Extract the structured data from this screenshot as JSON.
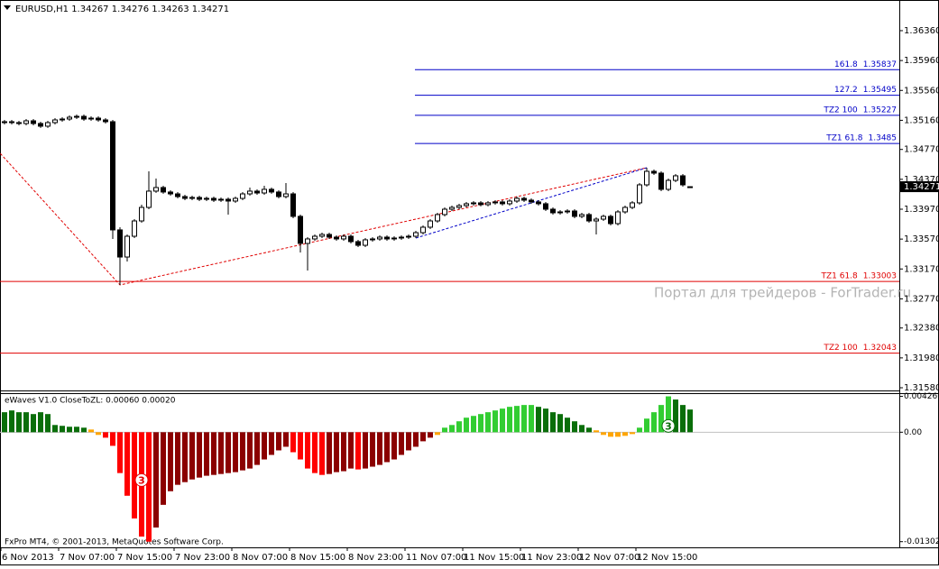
{
  "chart_data": [
    {
      "type": "candlestick",
      "title": "EURUSD,H1  1.34267 1.34276 1.34263 1.34271",
      "categories": [
        "6 Nov 2013",
        null,
        null,
        null,
        null,
        null,
        null,
        null,
        "7 Nov 07:00",
        null,
        null,
        null,
        null,
        null,
        null,
        null,
        "7 Nov 15:00",
        null,
        null,
        null,
        null,
        null,
        null,
        null,
        "7 Nov 23:00",
        null,
        null,
        null,
        null,
        null,
        null,
        null,
        "8 Nov 07:00",
        null,
        null,
        null,
        null,
        null,
        null,
        null,
        "8 Nov 15:00",
        null,
        null,
        null,
        null,
        null,
        null,
        null,
        "8 Nov 23:00",
        null,
        null,
        null,
        null,
        null,
        null,
        null,
        "11 Nov 07:00",
        null,
        null,
        null,
        null,
        null,
        null,
        null,
        "11 Nov 15:00",
        null,
        null,
        null,
        null,
        null,
        null,
        null,
        "11 Nov 23:00",
        null,
        null,
        null,
        null,
        null,
        null,
        null,
        "12 Nov 07:00",
        null,
        null,
        null,
        null,
        null,
        null,
        null,
        "12 Nov 15:00",
        null,
        null,
        null,
        null,
        null,
        null,
        null
      ],
      "open": [
        1.35129,
        1.35141,
        1.35129,
        1.35117,
        1.35153,
        1.35117,
        1.35081,
        1.35129,
        1.35165,
        1.35177,
        1.35201,
        1.35213,
        1.35177,
        1.35189,
        1.35165,
        1.35141,
        1.33693,
        1.3333,
        1.33608,
        1.33813,
        1.33994,
        1.34212,
        1.3426,
        1.342,
        1.34175,
        1.34139,
        1.34115,
        1.34127,
        1.34103,
        1.34115,
        1.34091,
        1.34103,
        1.34079,
        1.34115,
        1.34175,
        1.34212,
        1.34187,
        1.34236,
        1.342,
        1.34139,
        1.34175,
        1.33874,
        1.33512,
        1.33572,
        1.33608,
        1.33632,
        1.33596,
        1.33572,
        1.33608,
        1.33536,
        1.33487,
        1.3356,
        1.33572,
        1.33596,
        1.33572,
        1.33584,
        1.33596,
        1.33608,
        1.33656,
        1.33729,
        1.33813,
        1.33898,
        1.3397,
        1.33994,
        1.34018,
        1.34043,
        1.34055,
        1.34031,
        1.34055,
        1.34067,
        1.34043,
        1.34079,
        1.34115,
        1.34091,
        1.34067,
        1.34043,
        1.3397,
        1.33922,
        1.33934,
        1.33946,
        1.33874,
        1.33898,
        1.33813,
        1.33837,
        1.33874,
        1.33777,
        1.33934,
        1.33994,
        1.34055,
        1.34296,
        1.34477,
        1.34453,
        1.34236,
        1.34356,
        1.34417,
        1.34267
      ],
      "high": [
        1.35165,
        1.35165,
        1.35153,
        1.35177,
        1.35177,
        1.35141,
        1.35153,
        1.35189,
        1.35201,
        1.35225,
        1.35237,
        1.35237,
        1.35213,
        1.35213,
        1.35189,
        1.35165,
        1.33729,
        1.33632,
        1.33837,
        1.34031,
        1.34477,
        1.3438,
        1.34284,
        1.34224,
        1.34199,
        1.34163,
        1.34151,
        1.34151,
        1.34139,
        1.34139,
        1.34127,
        1.34127,
        1.34139,
        1.34199,
        1.3426,
        1.34236,
        1.34284,
        1.3426,
        1.34224,
        1.3432,
        1.34199,
        1.33898,
        1.33596,
        1.33632,
        1.33656,
        1.33656,
        1.3362,
        1.33632,
        1.33632,
        1.3356,
        1.33584,
        1.33596,
        1.3362,
        1.3362,
        1.33608,
        1.3362,
        1.33632,
        1.3368,
        1.33753,
        1.33837,
        1.33922,
        1.33994,
        1.34018,
        1.34043,
        1.34067,
        1.34079,
        1.34079,
        1.34079,
        1.34091,
        1.34091,
        1.34103,
        1.34139,
        1.34139,
        1.34115,
        1.34091,
        1.34067,
        1.33994,
        1.33958,
        1.3397,
        1.3397,
        1.33922,
        1.33922,
        1.33861,
        1.33898,
        1.33898,
        1.33958,
        1.34018,
        1.34079,
        1.3432,
        1.34525,
        1.34501,
        1.34477,
        1.3438,
        1.34441,
        1.34441,
        1.34276
      ],
      "low": [
        1.35105,
        1.35105,
        1.35093,
        1.35093,
        1.35093,
        1.35057,
        1.35057,
        1.35105,
        1.35141,
        1.35153,
        1.35177,
        1.35153,
        1.35153,
        1.35141,
        1.35117,
        1.33572,
        1.32956,
        1.3327,
        1.33584,
        1.33789,
        1.3397,
        1.34188,
        1.34176,
        1.34151,
        1.34115,
        1.34091,
        1.34091,
        1.34079,
        1.34079,
        1.34067,
        1.34067,
        1.33898,
        1.34055,
        1.34091,
        1.34151,
        1.34163,
        1.34163,
        1.34176,
        1.34115,
        1.34115,
        1.3385,
        1.33391,
        1.33149,
        1.33548,
        1.33584,
        1.33572,
        1.33548,
        1.33548,
        1.33512,
        1.33463,
        1.33463,
        1.33536,
        1.33548,
        1.33548,
        1.33548,
        1.3356,
        1.33572,
        1.33584,
        1.33632,
        1.33705,
        1.33789,
        1.33874,
        1.33946,
        1.3397,
        1.33994,
        1.34018,
        1.34007,
        1.34007,
        1.34031,
        1.34018,
        1.34018,
        1.34055,
        1.34067,
        1.34043,
        1.34018,
        1.33946,
        1.33898,
        1.33898,
        1.3391,
        1.3385,
        1.3385,
        1.33789,
        1.33632,
        1.33813,
        1.33753,
        1.33753,
        1.3391,
        1.3397,
        1.34031,
        1.34272,
        1.34429,
        1.34212,
        1.34212,
        1.34332,
        1.34272,
        1.34263
      ],
      "close": [
        1.35141,
        1.35129,
        1.35117,
        1.35153,
        1.35117,
        1.35081,
        1.35129,
        1.35165,
        1.35177,
        1.35201,
        1.35213,
        1.35177,
        1.35189,
        1.35165,
        1.35141,
        1.33693,
        1.3333,
        1.33608,
        1.33813,
        1.33994,
        1.34212,
        1.3426,
        1.342,
        1.34175,
        1.34139,
        1.34115,
        1.34127,
        1.34103,
        1.34115,
        1.34091,
        1.34103,
        1.34079,
        1.34115,
        1.34175,
        1.34212,
        1.34187,
        1.34236,
        1.342,
        1.34139,
        1.34175,
        1.33874,
        1.33512,
        1.33572,
        1.33608,
        1.33632,
        1.33596,
        1.33572,
        1.33608,
        1.33536,
        1.33487,
        1.3356,
        1.33572,
        1.33596,
        1.33572,
        1.33584,
        1.33596,
        1.33608,
        1.33656,
        1.33729,
        1.33813,
        1.33898,
        1.3397,
        1.33994,
        1.34018,
        1.34043,
        1.34055,
        1.34031,
        1.34055,
        1.34067,
        1.34043,
        1.34079,
        1.34115,
        1.34091,
        1.34067,
        1.34043,
        1.3397,
        1.33922,
        1.33934,
        1.33946,
        1.33874,
        1.33898,
        1.33813,
        1.33837,
        1.33874,
        1.33777,
        1.33934,
        1.33994,
        1.34055,
        1.34296,
        1.34477,
        1.34453,
        1.34236,
        1.34356,
        1.34417,
        1.34296,
        1.34271
      ],
      "ylim": [
        1.31556,
        1.36746
      ],
      "yticks": [
        {
          "value": 1.3636,
          "label": "1.36360"
        },
        {
          "value": 1.3596,
          "label": "1.35960"
        },
        {
          "value": 1.3556,
          "label": "1.35560"
        },
        {
          "value": 1.3516,
          "label": "1.35160"
        },
        {
          "value": 1.3477,
          "label": "1.34770"
        },
        {
          "value": 1.3437,
          "label": "1.34370"
        },
        {
          "value": 1.3397,
          "label": "1.33970"
        },
        {
          "value": 1.3357,
          "label": "1.33570"
        },
        {
          "value": 1.3317,
          "label": "1.33170"
        },
        {
          "value": 1.3277,
          "label": "1.32770"
        },
        {
          "value": 1.3238,
          "label": "1.32380"
        },
        {
          "value": 1.3198,
          "label": "1.31980"
        },
        {
          "value": 1.3158,
          "label": "1.31580"
        }
      ],
      "current_price": 1.34271,
      "levels": [
        {
          "label": "161.8",
          "value": 1.35837,
          "color": "#0000c8",
          "from": 57
        },
        {
          "label": "127.2",
          "value": 1.35495,
          "color": "#0000c8",
          "from": 57
        },
        {
          "label": "TZ2 100",
          "value": 1.35227,
          "color": "#0000c8",
          "from": 57
        },
        {
          "label": "TZ1 61.8",
          "value": 1.3485,
          "color": "#0000c8",
          "from": 57
        },
        {
          "label": "TZ1 61.8",
          "value": 1.33003,
          "color": "#e00000"
        },
        {
          "label": "TZ2 100",
          "value": 1.32043,
          "color": "#e00000"
        }
      ],
      "lines": [
        {
          "color": "#e00000",
          "x": [
            -1,
            16,
            89
          ],
          "y": [
            1.3476,
            1.32956,
            1.34525
          ]
        },
        {
          "color": "#0000c8",
          "x": [
            57,
            89
          ],
          "y": [
            1.33584,
            1.34525
          ]
        }
      ],
      "watermark": "Портал для трейдеров - ForTrader.ru",
      "footer": "FxPro MT4, © 2001-2013, MetaQuotes Software Corp."
    },
    {
      "type": "bar",
      "title": "eWaves V1.0 CloseToZL: 0.00060 0.00020",
      "values": [
        0.00238,
        0.00259,
        0.00238,
        0.00238,
        0.00216,
        0.00238,
        0.00216,
        0.00086,
        0.00076,
        0.00065,
        0.00065,
        0.00054,
        0.00032,
        -0.00032,
        -0.00065,
        -0.00162,
        -0.00486,
        -0.00756,
        -0.01026,
        -0.01242,
        -0.013024,
        -0.01134,
        -0.00864,
        -0.00702,
        -0.00626,
        -0.00594,
        -0.00562,
        -0.0054,
        -0.00518,
        -0.00508,
        -0.00497,
        -0.00486,
        -0.00475,
        -0.00454,
        -0.00432,
        -0.00389,
        -0.00324,
        -0.0027,
        -0.00216,
        -0.00173,
        -0.00238,
        -0.00324,
        -0.00432,
        -0.00486,
        -0.00508,
        -0.00497,
        -0.00475,
        -0.00464,
        -0.00432,
        -0.00443,
        -0.00432,
        -0.0041,
        -0.00389,
        -0.00356,
        -0.00324,
        -0.0027,
        -0.00216,
        -0.00173,
        -0.00108,
        -0.00065,
        -0.00032,
        0.00054,
        0.00086,
        0.0013,
        0.00173,
        0.00194,
        0.00216,
        0.00238,
        0.00259,
        0.00281,
        0.00302,
        0.00313,
        0.00324,
        0.00324,
        0.00302,
        0.00281,
        0.00238,
        0.00216,
        0.00173,
        0.0013,
        0.00086,
        0.00054,
        0.00022,
        -0.00032,
        -0.00054,
        -0.00054,
        -0.00043,
        -0.00022,
        0.00054,
        0.00162,
        0.00238,
        0.00324,
        0.004266,
        0.00389,
        0.00324,
        0.0027
      ],
      "colors": [
        "#0a6e0a",
        "#0a6e0a",
        "#0a6e0a",
        "#0a6e0a",
        "#0a6e0a",
        "#0a6e0a",
        "#0a6e0a",
        "#0a6e0a",
        "#0a6e0a",
        "#0a6e0a",
        "#0a6e0a",
        "#0a6e0a",
        "#ffa500",
        "#ffa500",
        "#ff0000",
        "#ff0000",
        "#ff0000",
        "#ff0000",
        "#ff0000",
        "#ff0000",
        "#ff0000",
        "#8b0000",
        "#8b0000",
        "#8b0000",
        "#8b0000",
        "#8b0000",
        "#8b0000",
        "#8b0000",
        "#8b0000",
        "#8b0000",
        "#8b0000",
        "#8b0000",
        "#8b0000",
        "#8b0000",
        "#8b0000",
        "#8b0000",
        "#8b0000",
        "#8b0000",
        "#8b0000",
        "#8b0000",
        "#ff0000",
        "#ff0000",
        "#ff0000",
        "#ff0000",
        "#ff0000",
        "#8b0000",
        "#8b0000",
        "#8b0000",
        "#8b0000",
        "#ff0000",
        "#8b0000",
        "#8b0000",
        "#8b0000",
        "#8b0000",
        "#8b0000",
        "#8b0000",
        "#8b0000",
        "#8b0000",
        "#8b0000",
        "#8b0000",
        "#ffa500",
        "#32cd32",
        "#32cd32",
        "#32cd32",
        "#32cd32",
        "#32cd32",
        "#32cd32",
        "#32cd32",
        "#32cd32",
        "#32cd32",
        "#32cd32",
        "#32cd32",
        "#32cd32",
        "#32cd32",
        "#0a6e0a",
        "#0a6e0a",
        "#0a6e0a",
        "#0a6e0a",
        "#0a6e0a",
        "#0a6e0a",
        "#0a6e0a",
        "#0a6e0a",
        "#ffa500",
        "#ffa500",
        "#ffa500",
        "#ffa500",
        "#ffa500",
        "#ffa500",
        "#32cd32",
        "#32cd32",
        "#32cd32",
        "#32cd32",
        "#32cd32",
        "#0a6e0a",
        "#0a6e0a",
        "#0a6e0a"
      ],
      "ylim": [
        -0.0137,
        0.00454
      ],
      "yticks": [
        0.004266,
        {
          "value": 0,
          "label": "0.00"
        },
        -0.013024
      ],
      "annotations": [
        {
          "text": "3",
          "index": 19,
          "y": -0.00569,
          "color": "#e00000"
        },
        {
          "text": "3",
          "index": 92,
          "y": 0.00075,
          "color": "#0a6e0a"
        }
      ]
    }
  ]
}
